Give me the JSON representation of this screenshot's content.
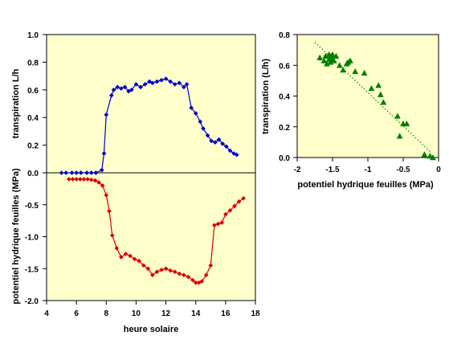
{
  "colors": {
    "plot_background": "#FFFFCC",
    "transpiration_series": "#0000CC",
    "potential_series": "#DD0000",
    "scatter_points": "#008000",
    "trendline": "#008000"
  },
  "chart_data": [
    {
      "type": "line",
      "grid": false,
      "xlabel": "heure solaire",
      "ylabel_top": "transpiration L/h",
      "ylabel_bottom": "potentiel hydrique feuilles  (MPa)",
      "xlim": [
        4,
        18
      ],
      "xticks": [
        "4",
        "6",
        "8",
        "10",
        "12",
        "14",
        "16",
        "18"
      ],
      "top_panel": {
        "ylim": [
          0,
          1.0
        ],
        "yticks": [
          "0.0",
          "0.2",
          "0.4",
          "0.6",
          "0.8",
          "1.0"
        ],
        "series": [
          {
            "marker": "diamond",
            "x": [
              5.0,
              5.3,
              5.7,
              6.0,
              6.3,
              6.7,
              7.0,
              7.3,
              7.7,
              7.85,
              8.0,
              8.35,
              8.5,
              8.75,
              9.0,
              9.25,
              9.5,
              9.7,
              10.0,
              10.3,
              10.6,
              10.9,
              11.1,
              11.4,
              11.7,
              12.0,
              12.3,
              12.6,
              12.9,
              13.2,
              13.4,
              13.7,
              14.0,
              14.3,
              14.5,
              14.8,
              15.05,
              15.3,
              15.55,
              15.8,
              16.05,
              16.3,
              16.55,
              16.75
            ],
            "y": [
              0.0,
              0.0,
              0.0,
              0.0,
              0.0,
              0.0,
              0.0,
              0.0,
              0.02,
              0.14,
              0.42,
              0.56,
              0.6,
              0.62,
              0.61,
              0.62,
              0.59,
              0.6,
              0.64,
              0.62,
              0.64,
              0.66,
              0.65,
              0.66,
              0.67,
              0.68,
              0.66,
              0.64,
              0.65,
              0.62,
              0.64,
              0.47,
              0.43,
              0.37,
              0.32,
              0.27,
              0.23,
              0.22,
              0.24,
              0.21,
              0.19,
              0.16,
              0.14,
              0.13
            ]
          }
        ]
      },
      "bottom_panel": {
        "ylim": [
          -2.0,
          0.0
        ],
        "yticks": [
          "-2.0",
          "-1.5",
          "-1.0",
          "-0.5",
          "0.0"
        ],
        "series": [
          {
            "marker": "diamond",
            "x": [
              5.5,
              5.75,
              6.0,
              6.25,
              6.5,
              6.75,
              7.0,
              7.25,
              7.5,
              7.75,
              8.0,
              8.2,
              8.4,
              8.7,
              9.0,
              9.3,
              9.6,
              9.9,
              10.2,
              10.5,
              10.8,
              11.1,
              11.4,
              11.7,
              12.0,
              12.3,
              12.6,
              12.9,
              13.2,
              13.5,
              13.8,
              14.0,
              14.2,
              14.4,
              14.7,
              15.0,
              15.25,
              15.5,
              15.75,
              16.0,
              16.3,
              16.6,
              16.9,
              17.2
            ],
            "y": [
              -0.1,
              -0.1,
              -0.1,
              -0.1,
              -0.1,
              -0.1,
              -0.11,
              -0.12,
              -0.15,
              -0.2,
              -0.35,
              -0.6,
              -0.98,
              -1.18,
              -1.32,
              -1.27,
              -1.3,
              -1.35,
              -1.38,
              -1.45,
              -1.5,
              -1.6,
              -1.55,
              -1.52,
              -1.5,
              -1.53,
              -1.55,
              -1.58,
              -1.6,
              -1.63,
              -1.68,
              -1.72,
              -1.72,
              -1.7,
              -1.6,
              -1.45,
              -0.82,
              -0.8,
              -0.78,
              -0.65,
              -0.59,
              -0.52,
              -0.45,
              -0.4
            ]
          }
        ]
      }
    },
    {
      "type": "scatter",
      "grid": false,
      "xlabel": "potentiel hydrique feuilles (MPa)",
      "ylabel": "transpiration (L/h)",
      "xlim": [
        -2,
        0
      ],
      "ylim": [
        0,
        0.8
      ],
      "xticks": [
        "-2",
        "-1.5",
        "-1",
        "-0.5",
        "0"
      ],
      "yticks": [
        "0.0",
        "0.2",
        "0.4",
        "0.6",
        "0.8"
      ],
      "trendline": {
        "style": "dotted",
        "x": [
          -1.75,
          -0.1
        ],
        "y": [
          0.75,
          0.03
        ]
      },
      "series": [
        {
          "marker": "triangle",
          "x": [
            -1.68,
            -1.62,
            -1.6,
            -1.58,
            -1.55,
            -1.55,
            -1.53,
            -1.52,
            -1.5,
            -1.5,
            -1.48,
            -1.45,
            -1.4,
            -1.35,
            -1.3,
            -1.28,
            -1.25,
            -1.18,
            -1.05,
            -0.95,
            -0.85,
            -0.82,
            -0.78,
            -0.58,
            -0.55,
            -0.5,
            -0.45,
            -0.2,
            -0.12,
            -0.08
          ],
          "y": [
            0.65,
            0.63,
            0.66,
            0.61,
            0.64,
            0.67,
            0.62,
            0.66,
            0.64,
            0.67,
            0.63,
            0.66,
            0.6,
            0.57,
            0.61,
            0.62,
            0.63,
            0.56,
            0.55,
            0.45,
            0.47,
            0.41,
            0.36,
            0.27,
            0.14,
            0.22,
            0.22,
            0.02,
            0.01,
            0.0
          ]
        }
      ]
    }
  ]
}
